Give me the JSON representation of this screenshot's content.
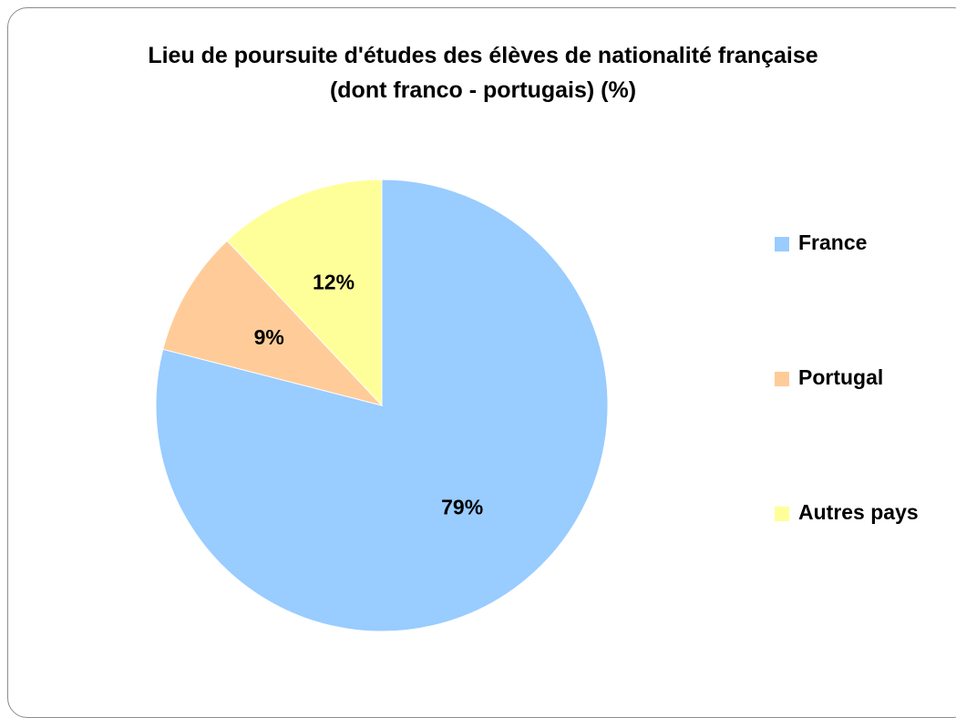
{
  "chart_data": {
    "type": "pie",
    "title": "Lieu de poursuite d'études des élèves de nationalité française (dont franco - portugais) (%)",
    "categories": [
      "France",
      "Portugal",
      "Autres pays"
    ],
    "values": [
      79,
      9,
      12
    ],
    "value_labels": [
      "79%",
      "9%",
      "12%"
    ],
    "colors": [
      "#99ccff",
      "#ffcc99",
      "#ffff99"
    ],
    "legend": "right"
  }
}
